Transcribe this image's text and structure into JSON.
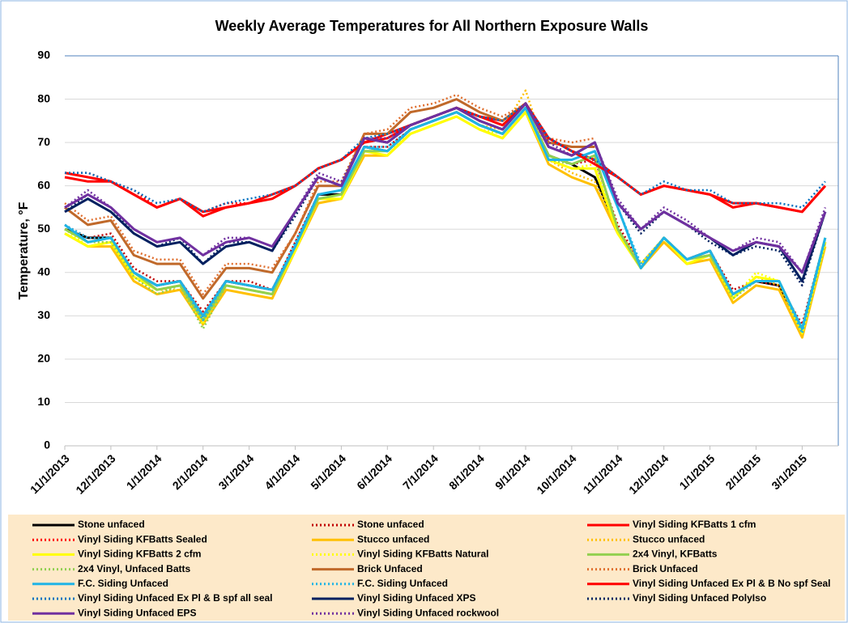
{
  "chart_data": {
    "type": "line",
    "title": "Weekly Average Temperatures for All Northern Exposure Walls",
    "y_label": "Temperature, °F",
    "ylim": [
      0,
      90
    ],
    "yticks": [
      0,
      10,
      20,
      30,
      40,
      50,
      60,
      70,
      80,
      90
    ],
    "grid": true,
    "categories": [
      "11/1/2013",
      null,
      "12/1/2013",
      null,
      "1/1/2014",
      null,
      "2/1/2014",
      null,
      "3/1/2014",
      null,
      "4/1/2014",
      null,
      "5/1/2014",
      null,
      "6/1/2014",
      null,
      "7/1/2014",
      null,
      "8/1/2014",
      null,
      "9/1/2014",
      null,
      "10/1/2014",
      null,
      "11/1/2014",
      null,
      "12/1/2014",
      null,
      "1/1/2015",
      null,
      "2/1/2015",
      null,
      "3/1/2015",
      null
    ],
    "series": [
      {
        "name": "Stone unfaced",
        "color": "#000000",
        "line_style": "solid",
        "values": [
          50,
          48,
          48,
          40,
          37,
          38,
          30,
          38,
          37,
          36,
          46,
          58,
          58,
          69,
          68,
          73,
          75,
          77,
          74,
          72,
          78,
          67,
          65,
          62,
          50,
          41,
          48,
          43,
          45,
          35,
          38,
          37,
          27,
          47
        ]
      },
      {
        "name": "Stone unfaced",
        "color": "#c00000",
        "line_style": "dotted",
        "values": [
          51,
          48,
          49,
          41,
          38,
          38,
          31,
          38,
          38,
          36,
          47,
          58,
          59,
          69,
          69,
          73,
          75,
          77,
          74,
          72,
          78,
          67,
          65,
          66,
          51,
          42,
          48,
          43,
          45,
          36,
          38,
          37,
          28,
          48
        ]
      },
      {
        "name": "Vinyl Siding KFBatts 1 cfm",
        "color": "#ff0000",
        "line_style": "solid",
        "values": [
          63,
          62,
          61,
          58,
          55,
          57,
          54,
          55,
          56,
          58,
          60,
          64,
          66,
          70,
          72,
          74,
          76,
          78,
          76,
          75,
          79,
          71,
          68,
          66,
          62,
          58,
          60,
          59,
          58,
          55,
          56,
          55,
          54,
          60
        ]
      },
      {
        "name": "Vinyl Siding KFBatts Sealed",
        "color": "#ff0000",
        "line_style": "dotted",
        "values": [
          63,
          63,
          61,
          59,
          55,
          57,
          54,
          56,
          56,
          58,
          60,
          64,
          66,
          70,
          72,
          74,
          76,
          78,
          76,
          75,
          79,
          71,
          68,
          66,
          62,
          58,
          60,
          59,
          58,
          55,
          56,
          55,
          54,
          60
        ]
      },
      {
        "name": "Stucco unfaced",
        "color": "#ffc000",
        "line_style": "solid",
        "values": [
          49,
          46,
          46,
          38,
          35,
          36,
          28,
          36,
          35,
          34,
          45,
          56,
          57,
          67,
          67,
          72,
          74,
          76,
          73,
          71,
          77,
          65,
          62,
          60,
          49,
          41,
          47,
          42,
          43,
          33,
          37,
          36,
          25,
          46
        ]
      },
      {
        "name": "Stucco unfaced",
        "color": "#ffc000",
        "line_style": "dotted",
        "values": [
          50,
          47,
          47,
          39,
          36,
          36,
          29,
          37,
          36,
          35,
          46,
          57,
          58,
          68,
          68,
          73,
          75,
          77,
          74,
          73,
          82,
          66,
          63,
          61,
          50,
          42,
          48,
          43,
          44,
          34,
          39,
          37,
          26,
          47
        ]
      },
      {
        "name": "Vinyl Siding KFBatts 2 cfm",
        "color": "#ffff00",
        "line_style": "solid",
        "values": [
          49,
          46,
          47,
          39,
          36,
          37,
          29,
          37,
          36,
          35,
          45,
          57,
          57,
          68,
          67,
          72,
          74,
          76,
          73,
          71,
          77,
          66,
          64,
          64,
          49,
          41,
          48,
          42,
          44,
          34,
          39,
          38,
          26,
          47
        ]
      },
      {
        "name": "Vinyl Siding KFBatts Natural",
        "color": "#ffff00",
        "line_style": "dotted",
        "values": [
          50,
          46,
          47,
          39,
          36,
          37,
          28,
          37,
          36,
          35,
          46,
          57,
          57,
          68,
          68,
          72,
          74,
          76,
          73,
          72,
          78,
          66,
          64,
          65,
          49,
          42,
          48,
          43,
          44,
          34,
          40,
          38,
          26,
          47
        ]
      },
      {
        "name": "2x4 Vinyl, KFBatts",
        "color": "#92d050",
        "line_style": "solid",
        "values": [
          50,
          47,
          48,
          40,
          36,
          37,
          29,
          37,
          36,
          35,
          46,
          57,
          58,
          68,
          68,
          73,
          75,
          77,
          74,
          72,
          78,
          67,
          65,
          67,
          50,
          41,
          48,
          43,
          44,
          35,
          38,
          38,
          27,
          48
        ]
      },
      {
        "name": "2x4 Vinyl, Unfaced Batts",
        "color": "#92d050",
        "line_style": "dotted",
        "values": [
          50,
          47,
          47,
          39,
          35,
          37,
          27,
          37,
          36,
          35,
          46,
          57,
          58,
          68,
          68,
          73,
          75,
          77,
          74,
          72,
          78,
          66,
          65,
          67,
          50,
          41,
          48,
          43,
          44,
          34,
          38,
          38,
          26,
          47
        ]
      },
      {
        "name": "Brick Unfaced",
        "color": "#c0692a",
        "line_style": "solid",
        "values": [
          55,
          51,
          52,
          44,
          42,
          42,
          34,
          41,
          41,
          40,
          49,
          60,
          60,
          72,
          72,
          77,
          78,
          80,
          77,
          75,
          79,
          70,
          69,
          69,
          null,
          null,
          null,
          null,
          null,
          null,
          null,
          null,
          null,
          null
        ]
      },
      {
        "name": "Brick Unfaced",
        "color": "#e07030",
        "line_style": "dotted",
        "values": [
          56,
          52,
          53,
          45,
          43,
          43,
          35,
          42,
          42,
          41,
          49,
          61,
          61,
          72,
          73,
          78,
          79,
          81,
          78,
          76,
          79,
          71,
          70,
          71,
          null,
          null,
          null,
          null,
          null,
          null,
          null,
          null,
          null,
          null
        ]
      },
      {
        "name": "F.C. Siding Unfaced",
        "color": "#1fb4e6",
        "line_style": "solid",
        "values": [
          51,
          47,
          48,
          40,
          37,
          38,
          30,
          38,
          37,
          36,
          46,
          58,
          59,
          69,
          68,
          73,
          75,
          77,
          74,
          72,
          78,
          66,
          66,
          68,
          55,
          41,
          48,
          43,
          45,
          35,
          38,
          38,
          27,
          48
        ]
      },
      {
        "name": "F.C. Siding Unfaced",
        "color": "#1fb4e6",
        "line_style": "dotted",
        "values": [
          51,
          48,
          48,
          40,
          37,
          38,
          29,
          38,
          37,
          36,
          47,
          58,
          59,
          69,
          69,
          73,
          75,
          77,
          74,
          72,
          78,
          66,
          66,
          68,
          55,
          42,
          48,
          43,
          45,
          35,
          38,
          38,
          26,
          48
        ]
      },
      {
        "name": "Vinyl Siding Unfaced Ex Pl & B No spf Seal",
        "color": "#ff0000",
        "line_style": "solid",
        "values": [
          62,
          61,
          61,
          58,
          55,
          57,
          53,
          55,
          56,
          57,
          60,
          64,
          66,
          70,
          71,
          74,
          76,
          78,
          76,
          74,
          79,
          71,
          68,
          65,
          62,
          58,
          60,
          59,
          58,
          56,
          56,
          55,
          54,
          60
        ]
      },
      {
        "name": "Vinyl Siding Unfaced Ex Pl & B spf all seal",
        "color": "#0070c0",
        "line_style": "dotted",
        "values": [
          63,
          63,
          61,
          59,
          56,
          57,
          54,
          56,
          57,
          58,
          60,
          64,
          66,
          71,
          72,
          74,
          76,
          78,
          76,
          75,
          79,
          71,
          68,
          66,
          62,
          58,
          61,
          59,
          59,
          56,
          56,
          56,
          55,
          61
        ]
      },
      {
        "name": "Vinyl Siding Unfaced XPS",
        "color": "#002060",
        "line_style": "solid",
        "values": [
          54,
          57,
          54,
          49,
          46,
          47,
          42,
          46,
          47,
          45,
          54,
          62,
          60,
          71,
          70,
          74,
          76,
          78,
          75,
          73,
          79,
          69,
          67,
          70,
          56,
          50,
          54,
          51,
          48,
          44,
          47,
          46,
          38,
          54
        ]
      },
      {
        "name": "Vinyl Siding Unfaced PolyIso",
        "color": "#002060",
        "line_style": "dotted",
        "values": [
          54,
          58,
          55,
          49,
          46,
          48,
          42,
          47,
          47,
          45,
          53,
          62,
          60,
          71,
          70,
          74,
          76,
          78,
          75,
          73,
          79,
          69,
          67,
          70,
          56,
          49,
          54,
          51,
          47,
          44,
          46,
          45,
          37,
          54
        ]
      },
      {
        "name": "Vinyl Siding Unfaced EPS",
        "color": "#7030a0",
        "line_style": "solid",
        "values": [
          55,
          58,
          55,
          50,
          47,
          48,
          44,
          47,
          48,
          46,
          54,
          62,
          60,
          71,
          70,
          74,
          76,
          78,
          75,
          73,
          79,
          69,
          67,
          70,
          56,
          50,
          54,
          51,
          48,
          45,
          47,
          46,
          40,
          54
        ]
      },
      {
        "name": "Vinyl Siding Unfaced rockwool",
        "color": "#7030a0",
        "line_style": "dotted",
        "values": [
          55,
          59,
          55,
          50,
          47,
          48,
          44,
          48,
          48,
          46,
          54,
          63,
          61,
          71,
          71,
          74,
          76,
          78,
          75,
          73,
          79,
          70,
          67,
          70,
          57,
          50,
          55,
          52,
          48,
          45,
          48,
          47,
          40,
          55
        ]
      }
    ]
  }
}
